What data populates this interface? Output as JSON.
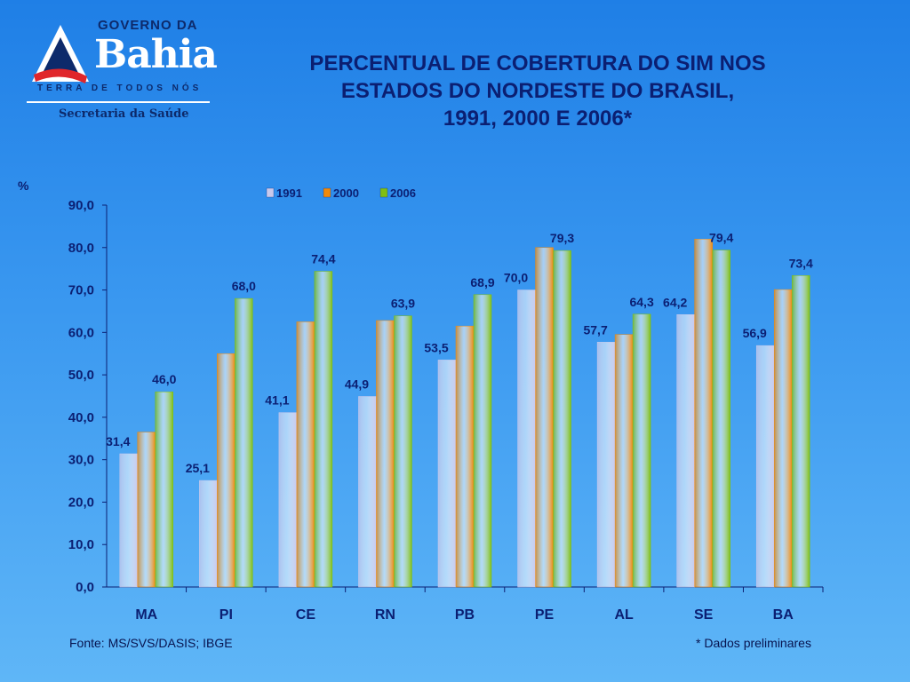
{
  "branding": {
    "gov_text": "GOVERNO DA",
    "name": "Bahia",
    "tagline": "TERRA DE TODOS NÓS",
    "department": "Secretaria da Saúde"
  },
  "footer": {
    "source": "Fonte: MS/SVS/DASIS; IBGE",
    "note": "* Dados preliminares"
  },
  "chart_data": {
    "type": "bar",
    "title_lines": [
      "PERCENTUAL DE COBERTURA DO SIM NOS",
      "ESTADOS DO NORDESTE DO BRASIL,",
      "1991, 2000 E 2006*"
    ],
    "ylabel": "%",
    "xlabel": "",
    "ylim": [
      0,
      90
    ],
    "yticks": [
      "0,0",
      "10,0",
      "20,0",
      "30,0",
      "40,0",
      "50,0",
      "60,0",
      "70,0",
      "80,0",
      "90,0"
    ],
    "categories": [
      "MA",
      "PI",
      "CE",
      "RN",
      "PB",
      "PE",
      "AL",
      "SE",
      "BA"
    ],
    "legend_position": "top",
    "grid": false,
    "series": [
      {
        "name": "1991",
        "color": "#c9c9ec",
        "values": [
          31.4,
          25.1,
          41.1,
          44.9,
          53.5,
          70.0,
          57.7,
          64.2,
          56.9
        ],
        "labels": [
          "31,4",
          "25,1",
          "41,1",
          "44,9",
          "53,5",
          "70,0",
          "57,7",
          "64,2",
          "56,9"
        ]
      },
      {
        "name": "2000",
        "color": "#f08a0c",
        "values": [
          36.5,
          55.0,
          62.5,
          62.8,
          61.5,
          80.0,
          59.5,
          82.0,
          70.1
        ],
        "labels": [
          null,
          null,
          null,
          null,
          null,
          null,
          null,
          null,
          null
        ]
      },
      {
        "name": "2006",
        "color": "#7fbf12",
        "values": [
          46.0,
          68.0,
          74.4,
          63.9,
          68.9,
          79.3,
          64.3,
          79.4,
          73.4
        ],
        "labels": [
          "46,0",
          "68,0",
          "74,4",
          "63,9",
          "68,9",
          "79,3",
          "64,3",
          "79,4",
          "73,4"
        ]
      }
    ]
  }
}
